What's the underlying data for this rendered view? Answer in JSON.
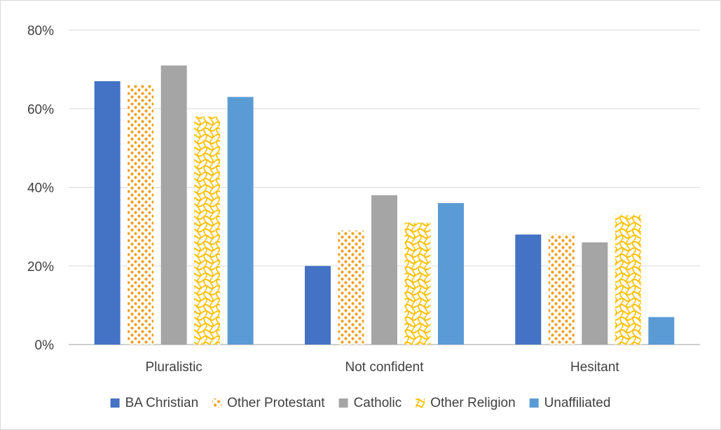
{
  "chart_data": {
    "type": "bar",
    "title": "",
    "xlabel": "",
    "ylabel": "",
    "ylim": [
      0,
      80
    ],
    "yticks": [
      0,
      20,
      40,
      60,
      80
    ],
    "ytick_format": "%",
    "grid": true,
    "legend_position": "bottom",
    "categories": [
      "Pluralistic",
      "Not confident",
      "Hesitant"
    ],
    "series": [
      {
        "name": "BA Christian",
        "values": [
          67,
          20,
          28
        ],
        "color": "#4472c4",
        "pattern": "solid"
      },
      {
        "name": "Other Protestant",
        "values": [
          66,
          29,
          28
        ],
        "color": "#f0a020",
        "pattern": "dots"
      },
      {
        "name": "Catholic",
        "values": [
          71,
          38,
          26
        ],
        "color": "#a5a5a5",
        "pattern": "solid"
      },
      {
        "name": "Other Religion",
        "values": [
          58,
          31,
          33
        ],
        "color": "#ffc000",
        "pattern": "waves"
      },
      {
        "name": "Unaffiliated",
        "values": [
          63,
          36,
          7
        ],
        "color": "#5b9bd5",
        "pattern": "solid"
      }
    ]
  }
}
